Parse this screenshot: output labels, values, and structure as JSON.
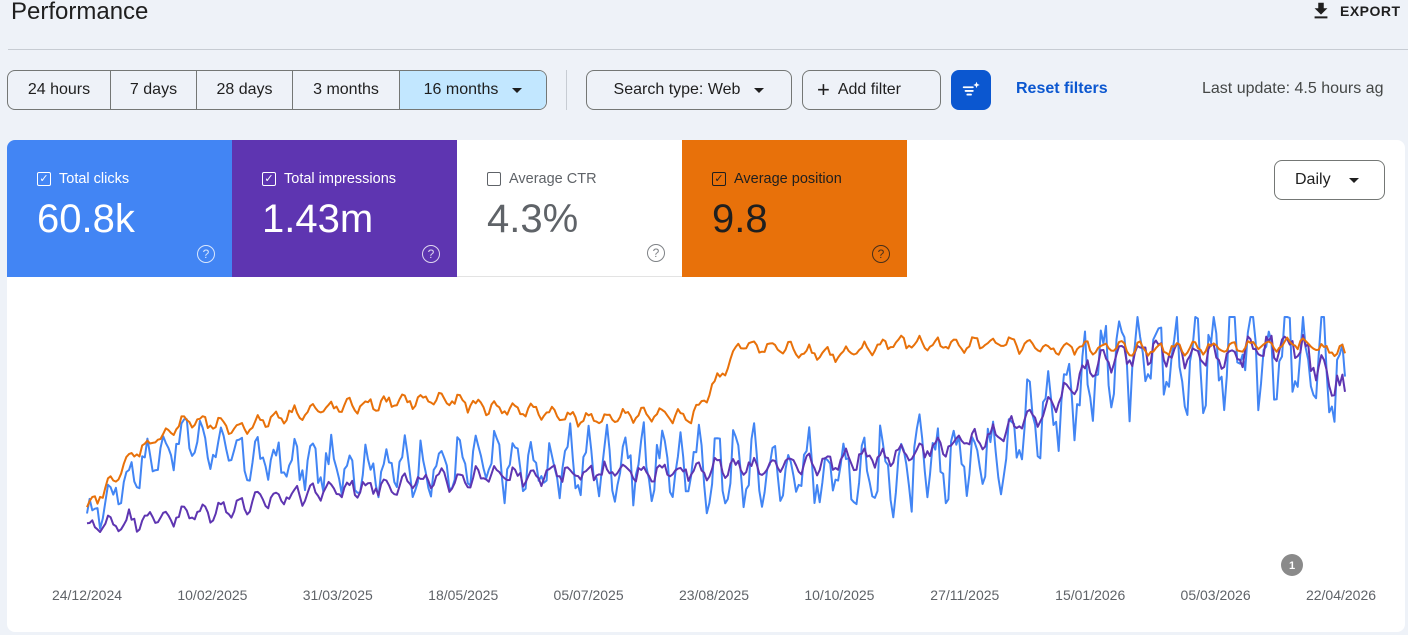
{
  "header": {
    "title": "Performance",
    "export_label": "EXPORT",
    "export_icon": "download-icon"
  },
  "toolbar": {
    "date_ranges": [
      {
        "label": "24 hours",
        "active": false
      },
      {
        "label": "7 days",
        "active": false
      },
      {
        "label": "28 days",
        "active": false
      },
      {
        "label": "3 months",
        "active": false
      },
      {
        "label": "16 months",
        "active": true
      }
    ],
    "search_type": "Search type: Web",
    "add_filter": "Add filter",
    "reset_filters": "Reset filters",
    "last_update": "Last update: 4.5 hours ag"
  },
  "metrics": [
    {
      "label": "Total clicks",
      "value": "60.8k",
      "checked": true,
      "color": "#4285f4"
    },
    {
      "label": "Total impressions",
      "value": "1.43m",
      "checked": true,
      "color": "#5e35b1"
    },
    {
      "label": "Average CTR",
      "value": "4.3%",
      "checked": false,
      "color": "#ffffff"
    },
    {
      "label": "Average position",
      "value": "9.8",
      "checked": true,
      "color": "#e8710a"
    }
  ],
  "granularity": "Daily",
  "chart_data": {
    "type": "line",
    "x_tick_labels": [
      "24/12/2024",
      "10/02/2025",
      "31/03/2025",
      "18/05/2025",
      "05/07/2025",
      "23/08/2025",
      "10/10/2025",
      "27/11/2025",
      "15/01/2026",
      "05/03/2026",
      "22/04/2026"
    ],
    "annotation": "1",
    "series": [
      {
        "name": "Total clicks",
        "color": "#4285f4",
        "relative_level": [
          0.05,
          0.3,
          0.45,
          0.35,
          0.32,
          0.3,
          0.3,
          0.3,
          0.32,
          0.3,
          0.32,
          0.33,
          0.3,
          0.3,
          0.28,
          0.3,
          0.28,
          0.32,
          0.4,
          0.55,
          0.75,
          0.82,
          0.8,
          0.85,
          0.8,
          0.72
        ]
      },
      {
        "name": "Total impressions",
        "color": "#5e35b1",
        "relative_level": [
          0.02,
          0.06,
          0.08,
          0.12,
          0.17,
          0.2,
          0.22,
          0.24,
          0.26,
          0.27,
          0.28,
          0.28,
          0.29,
          0.3,
          0.31,
          0.33,
          0.36,
          0.4,
          0.45,
          0.55,
          0.78,
          0.85,
          0.82,
          0.83,
          0.88,
          0.65
        ]
      },
      {
        "name": "Average position",
        "color": "#e8710a",
        "relative_level": [
          0.1,
          0.38,
          0.52,
          0.48,
          0.55,
          0.58,
          0.6,
          0.62,
          0.58,
          0.56,
          0.52,
          0.55,
          0.53,
          0.87,
          0.85,
          0.82,
          0.88,
          0.87,
          0.88,
          0.85,
          0.86,
          0.85,
          0.86,
          0.86,
          0.88,
          0.83
        ]
      }
    ]
  }
}
